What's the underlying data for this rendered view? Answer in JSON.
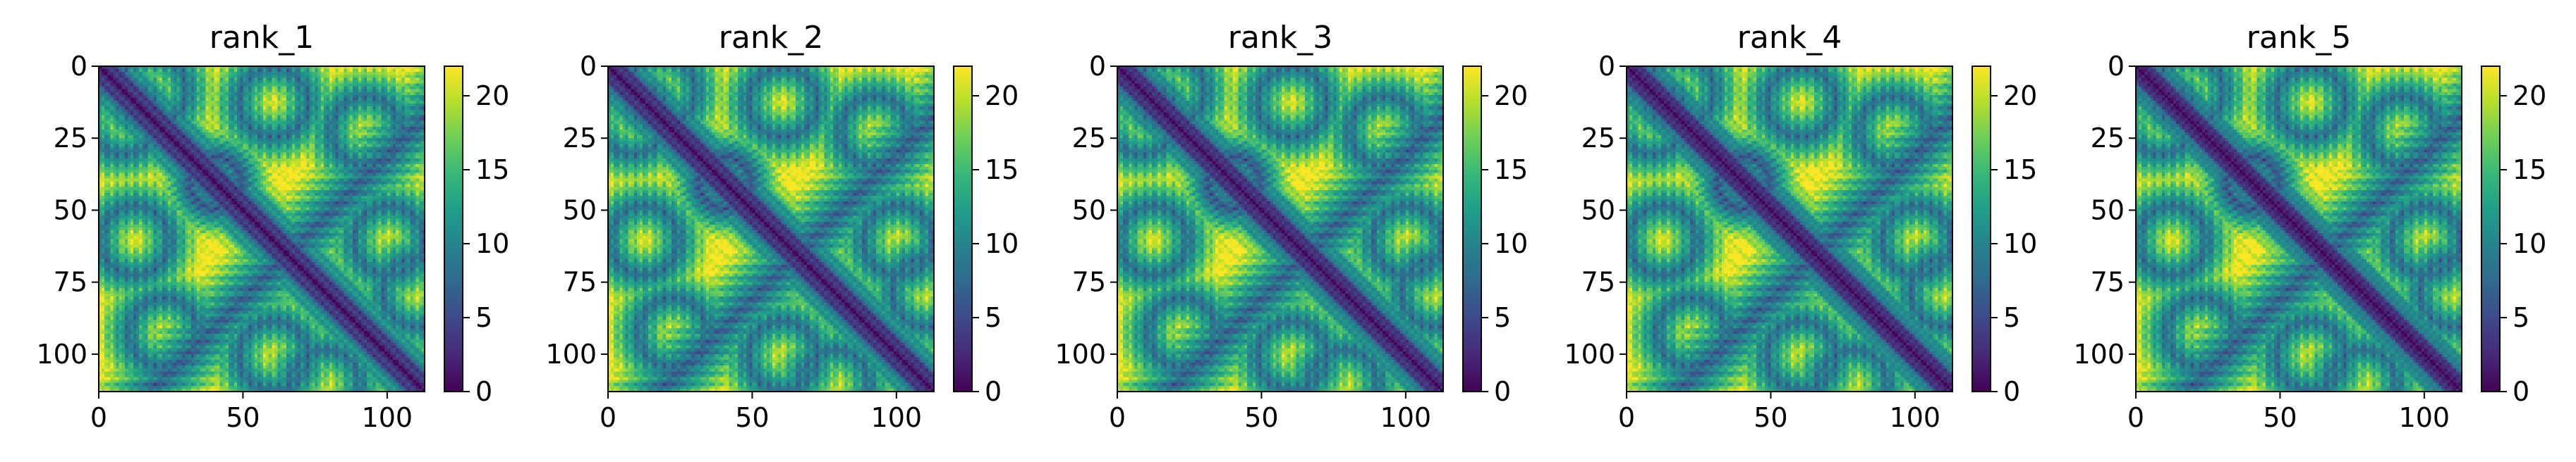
{
  "chart_data": {
    "type": "heatmap",
    "description_free": true,
    "n": 113,
    "colormap": "viridis",
    "colorbar": {
      "min": 0,
      "max": 22,
      "ticks": [
        0,
        5,
        10,
        15,
        20
      ]
    },
    "x_ticks": [
      0,
      50,
      100
    ],
    "y_ticks": [
      0,
      25,
      50,
      75,
      100
    ],
    "axis_range": [
      0,
      113
    ],
    "panels": [
      {
        "title": "rank_1"
      },
      {
        "title": "rank_2"
      },
      {
        "title": "rank_3"
      },
      {
        "title": "rank_4"
      },
      {
        "title": "rank_5"
      }
    ],
    "structure": {
      "diagonal_zero": true,
      "ring_centers": [
        [
          40,
          40
        ]
      ],
      "contact_bands": [
        {
          "from": [
            20,
            110
          ],
          "to": [
            110,
            20
          ]
        },
        {
          "from": [
            5,
            55
          ],
          "to": [
            55,
            5
          ]
        },
        {
          "from": [
            60,
            110
          ],
          "to": [
            110,
            60
          ]
        }
      ]
    }
  },
  "colors": {
    "viridis": [
      "#440154",
      "#482878",
      "#3e4989",
      "#31688e",
      "#26828e",
      "#1f9e89",
      "#35b779",
      "#6ece58",
      "#b5de2b",
      "#fde725"
    ]
  }
}
